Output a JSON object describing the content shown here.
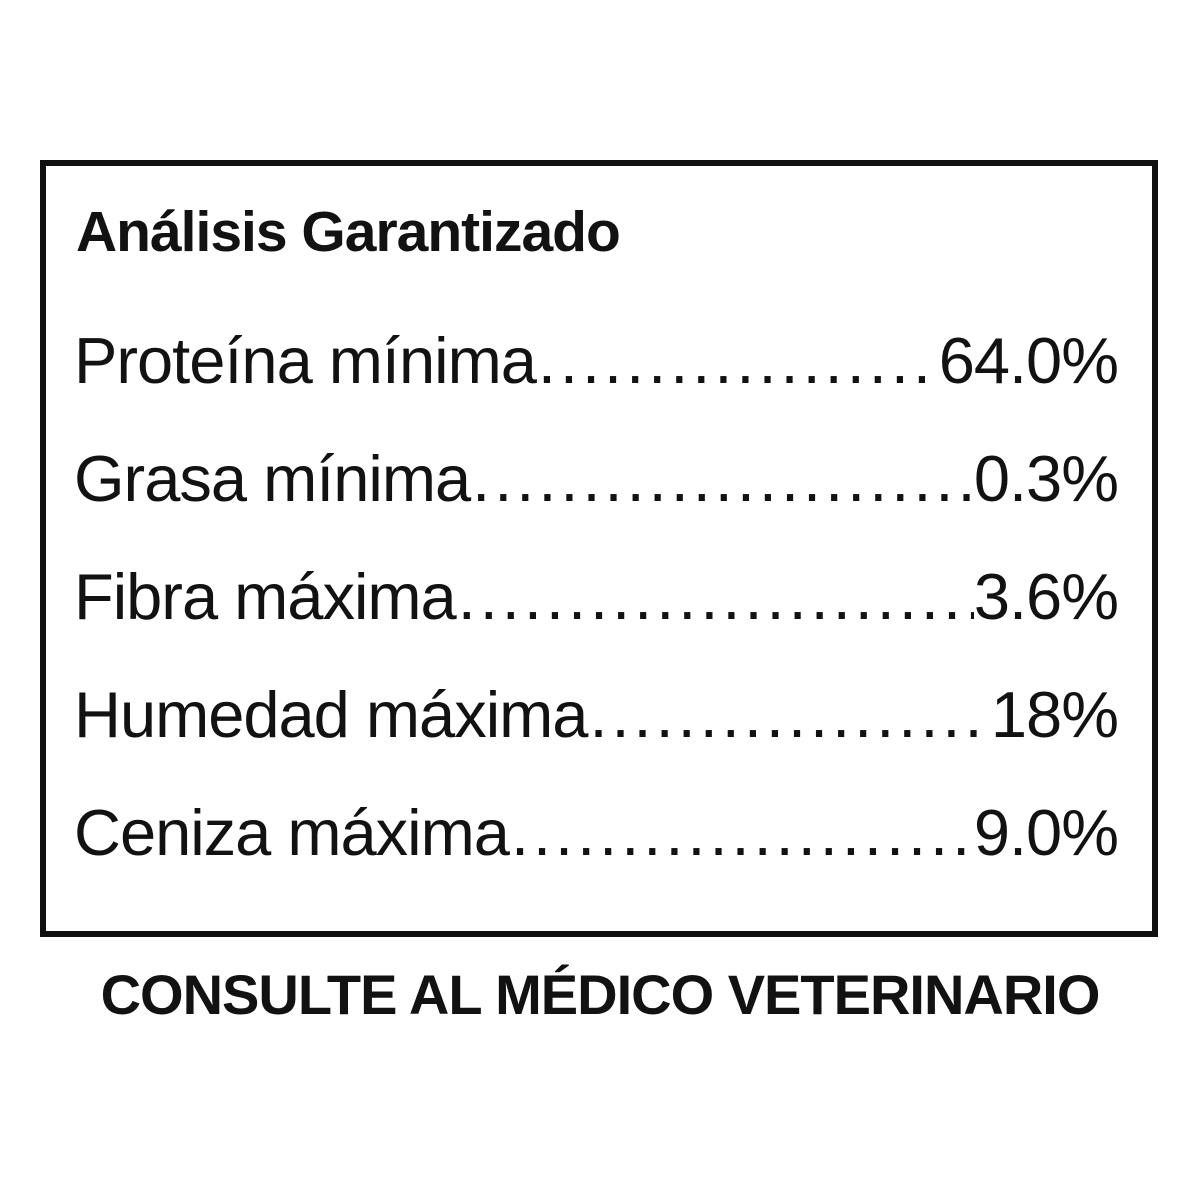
{
  "panel": {
    "title": "Análisis Garantizado",
    "dot_leader": "..............................................................................................",
    "rows": [
      {
        "label": "Proteína mínima",
        "value": "64.0%"
      },
      {
        "label": "Grasa mínima",
        "value": "0.3%"
      },
      {
        "label": "Fibra máxima",
        "value": "3.6%"
      },
      {
        "label": "Humedad máxima",
        "value": "18%"
      },
      {
        "label": "Ceniza máxima ",
        "value": "9.0%"
      }
    ]
  },
  "footer": {
    "text": "CONSULTE AL MÉDICO VETERINARIO"
  },
  "colors": {
    "text": "#121212",
    "border": "#101010",
    "background": "#ffffff"
  }
}
